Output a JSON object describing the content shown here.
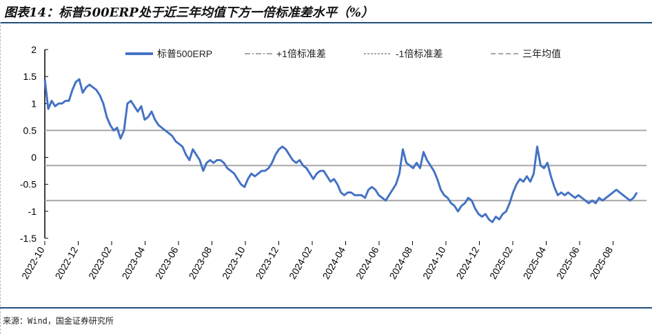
{
  "title": "图表14：标普500ERP处于近三年均值下方一倍标准差水平（%）",
  "source": "来源：Wind，国金证券研究所",
  "chart_data": {
    "type": "line",
    "title": "图表14：标普500ERP处于近三年均值下方一倍标准差水平（%）",
    "xlabel": "",
    "ylabel": "",
    "x_unit": "months since 2022-10",
    "x_start_month": 0,
    "x_step_months": 0.206,
    "xlim": [
      0,
      36
    ],
    "ylim": [
      -1.5,
      2
    ],
    "yticks": [
      "2",
      "1.5",
      "1",
      "0.5",
      "0",
      "-0.5",
      "-1",
      "-1.5"
    ],
    "ytick_values": [
      2,
      1.5,
      1,
      0.5,
      0,
      -0.5,
      -1,
      -1.5
    ],
    "xticks": [
      "2022-10",
      "2022-12",
      "2023-02",
      "2023-04",
      "2023-06",
      "2023-08",
      "2023-10",
      "2023-12",
      "2024-02",
      "2024-04",
      "2024-06",
      "2024-08",
      "2024-10",
      "2024-12",
      "2025-02",
      "2025-04",
      "2025-06",
      "2025-08"
    ],
    "xtick_months": [
      0,
      2,
      4,
      6,
      8,
      10,
      12,
      14,
      16,
      18,
      20,
      22,
      24,
      26,
      28,
      30,
      32,
      34
    ],
    "grid": false,
    "legend_position": "top",
    "colors": {
      "series": "#4472C4",
      "ref": "#a6a6a6"
    },
    "series": [
      {
        "name": "标普500ERP",
        "style": "solid",
        "values": [
          1.45,
          0.9,
          1.05,
          0.95,
          1.0,
          1.0,
          1.05,
          1.05,
          1.25,
          1.4,
          1.45,
          1.2,
          1.3,
          1.35,
          1.3,
          1.25,
          1.15,
          1.0,
          0.75,
          0.6,
          0.5,
          0.55,
          0.35,
          0.5,
          1.0,
          1.05,
          0.95,
          0.85,
          0.95,
          0.7,
          0.75,
          0.85,
          0.7,
          0.6,
          0.55,
          0.5,
          0.45,
          0.4,
          0.3,
          0.25,
          0.2,
          0.05,
          -0.05,
          0.15,
          0.05,
          -0.05,
          -0.25,
          -0.1,
          -0.05,
          -0.1,
          -0.05,
          -0.05,
          -0.1,
          -0.2,
          -0.25,
          -0.3,
          -0.4,
          -0.5,
          -0.55,
          -0.4,
          -0.3,
          -0.35,
          -0.3,
          -0.25,
          -0.25,
          -0.2,
          -0.1,
          0.05,
          0.15,
          0.2,
          0.15,
          0.05,
          -0.05,
          -0.1,
          -0.05,
          -0.15,
          -0.2,
          -0.3,
          -0.4,
          -0.3,
          -0.25,
          -0.25,
          -0.35,
          -0.45,
          -0.4,
          -0.5,
          -0.65,
          -0.7,
          -0.65,
          -0.65,
          -0.7,
          -0.7,
          -0.7,
          -0.75,
          -0.6,
          -0.55,
          -0.6,
          -0.7,
          -0.75,
          -0.8,
          -0.7,
          -0.6,
          -0.5,
          -0.3,
          0.15,
          -0.1,
          -0.15,
          -0.2,
          -0.1,
          -0.2,
          0.1,
          -0.05,
          -0.15,
          -0.25,
          -0.4,
          -0.6,
          -0.7,
          -0.75,
          -0.85,
          -0.9,
          -1.0,
          -0.9,
          -0.85,
          -0.75,
          -0.8,
          -0.95,
          -1.05,
          -1.1,
          -1.05,
          -1.15,
          -1.2,
          -1.1,
          -1.15,
          -1.05,
          -1.0,
          -0.85,
          -0.65,
          -0.5,
          -0.4,
          -0.45,
          -0.35,
          -0.45,
          -0.3,
          0.2,
          -0.15,
          -0.2,
          -0.1,
          -0.35,
          -0.55,
          -0.7,
          -0.65,
          -0.7,
          -0.65,
          -0.7,
          -0.75,
          -0.7,
          -0.75,
          -0.8,
          -0.85,
          -0.8,
          -0.85,
          -0.75,
          -0.8,
          -0.75,
          -0.7,
          -0.65,
          -0.6,
          -0.65,
          -0.7,
          -0.75,
          -0.8,
          -0.75,
          -0.65
        ]
      },
      {
        "name": "+1倍标准差",
        "style": "dashdot",
        "constant": 0.5
      },
      {
        "name": "-1倍标准差",
        "style": "dashed",
        "constant": -0.8
      },
      {
        "name": "三年均值",
        "style": "longdash",
        "constant": -0.15
      }
    ]
  }
}
